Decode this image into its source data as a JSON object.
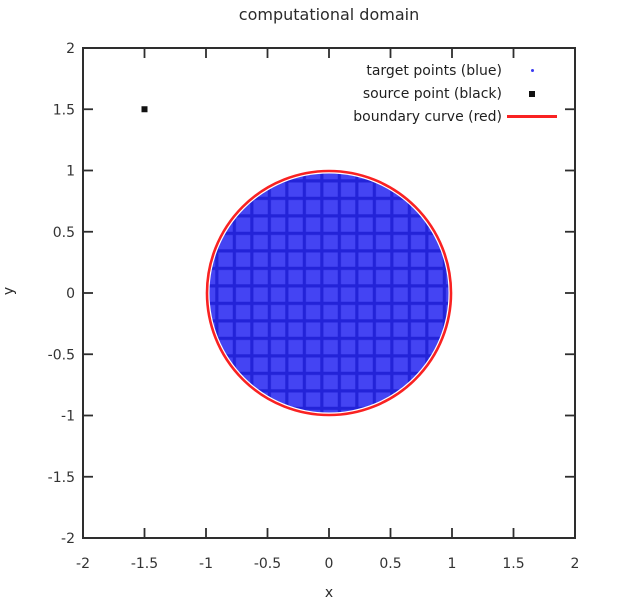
{
  "chart_data": {
    "type": "scatter",
    "title": "computational domain",
    "xlabel": "x",
    "ylabel": "y",
    "xlim": [
      -2,
      2
    ],
    "ylim": [
      -2,
      2
    ],
    "xticks": [
      -2,
      -1.5,
      -1,
      -0.5,
      0,
      0.5,
      1,
      1.5,
      2
    ],
    "yticks": [
      -2,
      -1.5,
      -1,
      -0.5,
      0,
      0.5,
      1,
      1.5,
      2
    ],
    "grid": false,
    "legend": {
      "position": "top-right-inside",
      "entries": [
        {
          "label": "target points (blue)",
          "marker": "dot",
          "color": "#3a3af2"
        },
        {
          "label": "source point (black)",
          "marker": "square",
          "color": "#111111"
        },
        {
          "label": "boundary curve (red)",
          "marker": "line",
          "color": "#f92222"
        }
      ]
    },
    "series": [
      {
        "name": "target points (blue)",
        "type": "scatter",
        "marker": "dot",
        "description": "dense uniform grid of tiny blue points filling the unit disk, rendered as a blue fill with darker grid lines",
        "center": [
          0,
          0
        ],
        "radius": 1.0,
        "color": "#4444f3",
        "grid_line_color": "#2323d8"
      },
      {
        "name": "source point (black)",
        "type": "scatter",
        "marker": "square",
        "color": "#111111",
        "points": [
          [
            -1.5,
            1.5
          ]
        ]
      },
      {
        "name": "boundary curve (red)",
        "type": "line",
        "curve": "circle",
        "center": [
          0,
          0
        ],
        "radius": 1.0,
        "color": "#f92222",
        "linewidth": 2.6
      }
    ],
    "colors": {
      "frame": "#2e2e2e",
      "tick_text": "#333333",
      "background": "#ffffff"
    }
  }
}
